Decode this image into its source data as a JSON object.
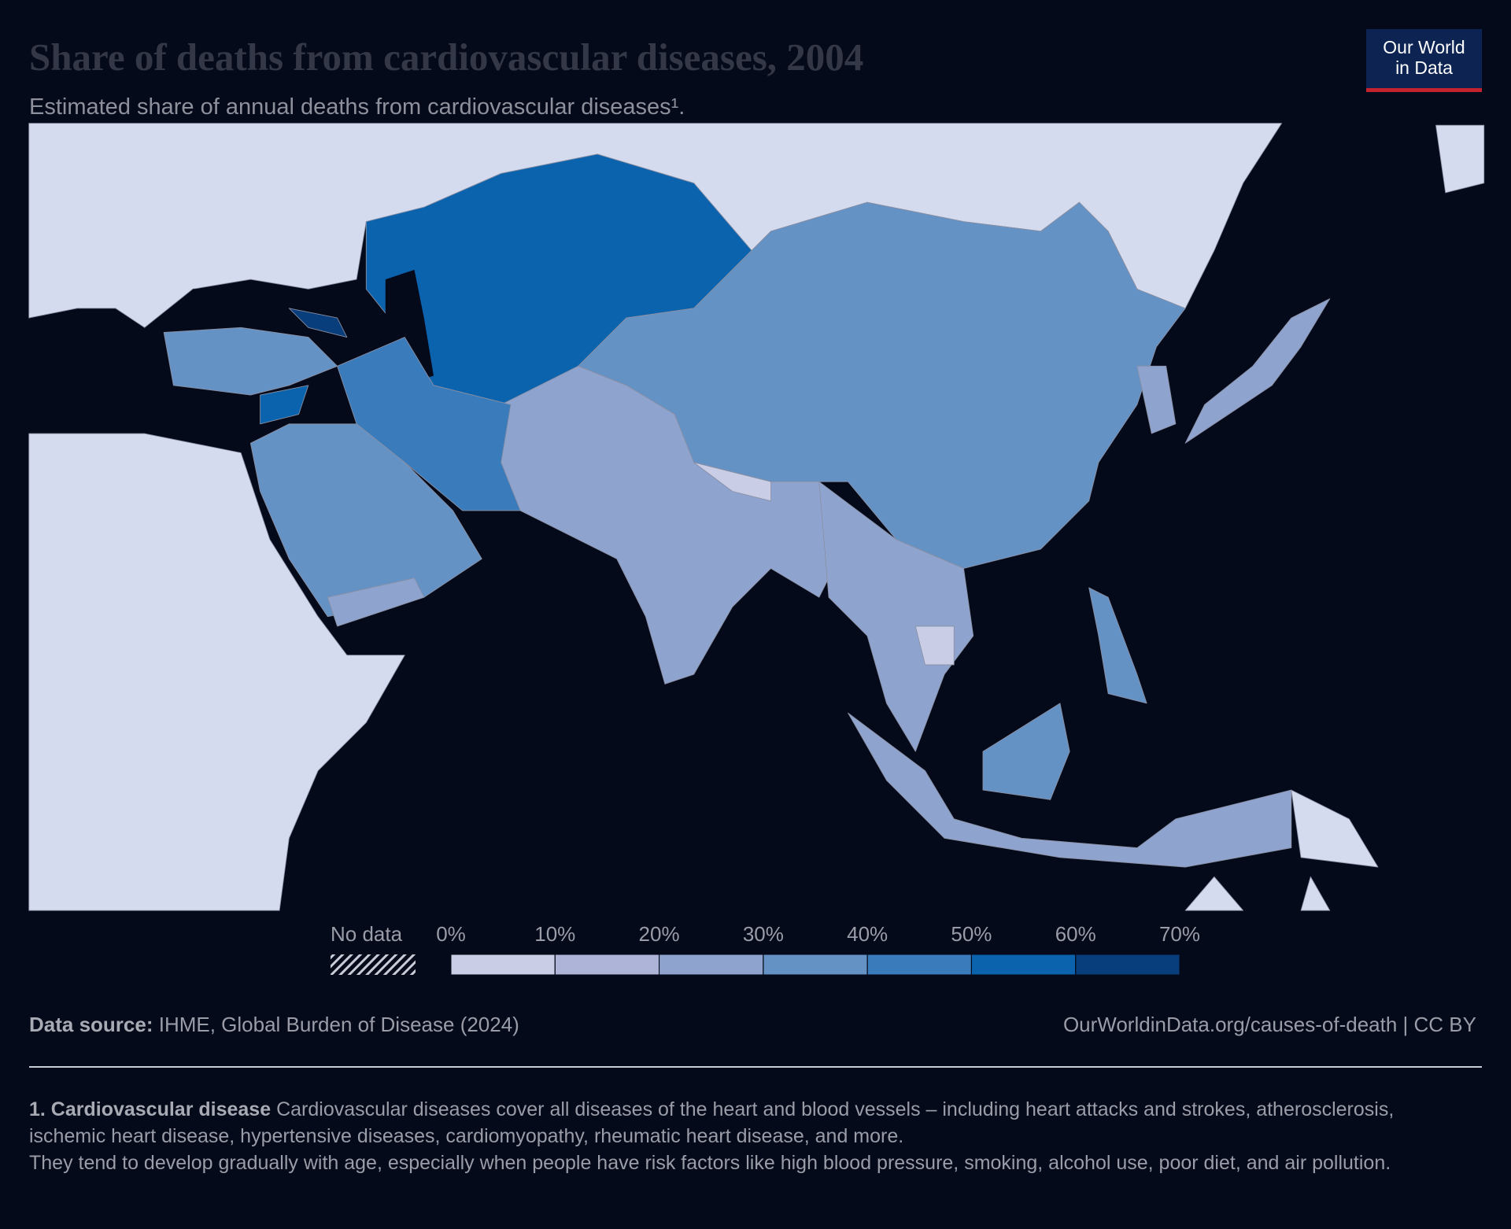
{
  "header": {
    "title": "Share of deaths from cardiovascular diseases, 2004",
    "subtitle": "Estimated share of annual deaths from cardiovascular diseases¹.",
    "logo": [
      "Our World",
      "in Data"
    ]
  },
  "legend": {
    "no_data": "No data",
    "ticks": [
      {
        "value": 0,
        "label": "0%"
      },
      {
        "value": 10,
        "label": "10%"
      },
      {
        "value": 20,
        "label": "20%"
      },
      {
        "value": 30,
        "label": "30%"
      },
      {
        "value": 40,
        "label": "40%"
      },
      {
        "value": 50,
        "label": "50%"
      },
      {
        "value": 60,
        "label": "60%"
      },
      {
        "value": 70,
        "label": "70%"
      }
    ],
    "colors": [
      "#c9cde6",
      "#aeb3d8",
      "#8ea4cf",
      "#6592c4",
      "#3a7bbb",
      "#0b63ae",
      "#083e7c"
    ]
  },
  "footer": {
    "source_label": "Data source:",
    "source": "IHME, Global Burden of Disease (2024)",
    "url": "OurWorldinData.org/causes-of-death | CC BY"
  },
  "note": {
    "label": "1. Cardiovascular disease",
    "text": "Cardiovascular diseases cover all diseases of the heart and blood vessels – including heart attacks and strokes, atherosclerosis, ischemic heart disease, hypertensive diseases, cardiomyopathy, rheumatic heart disease, and more.",
    "text2": "They tend to develop gradually with age, especially when people have risk factors like high blood pressure, smoking, alcohol use, poor diet, and air pollution."
  }
}
